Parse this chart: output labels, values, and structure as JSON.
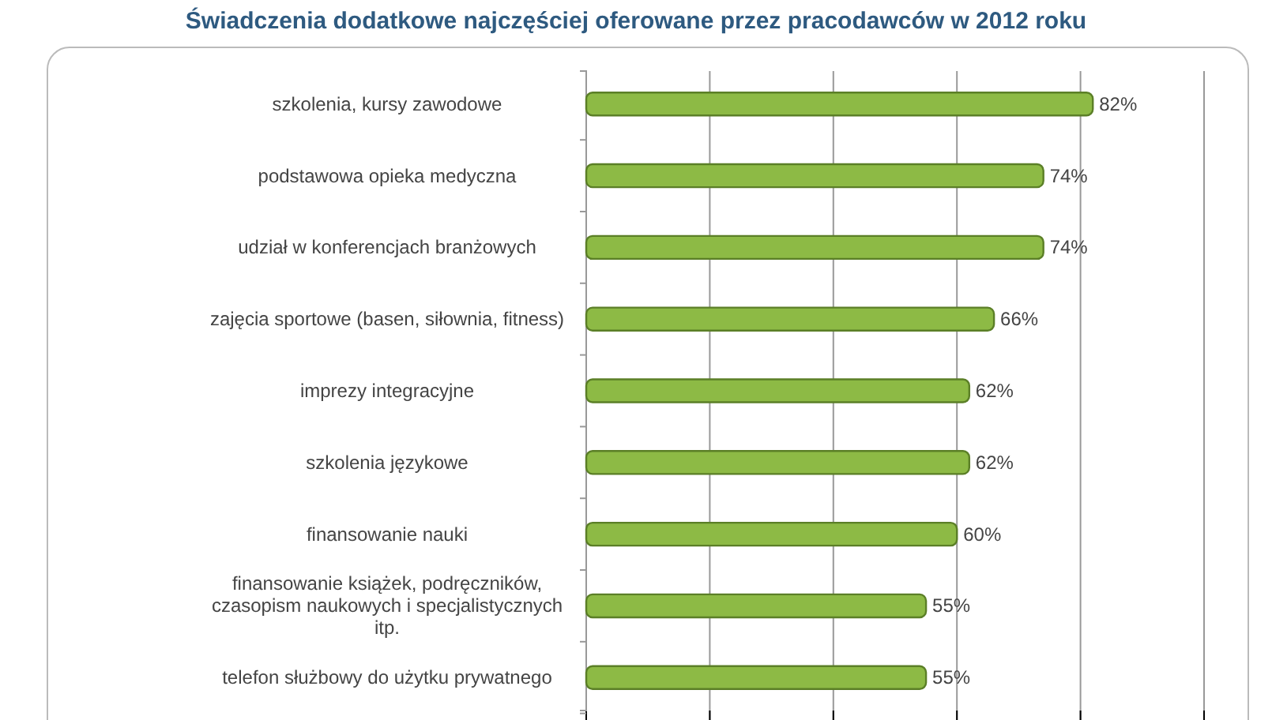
{
  "chart_data": {
    "type": "bar",
    "orientation": "horizontal",
    "title": "Świadczenia dodatkowe najczęściej oferowane przez pracodawców w 2012 roku",
    "categories": [
      "szkolenia, kursy zawodowe",
      "podstawowa opieka medyczna",
      "udział w konferencjach branżowych",
      "zajęcia sportowe (basen, siłownia, fitness)",
      "imprezy integracyjne",
      "szkolenia językowe",
      "finansowanie nauki",
      "finansowanie książek, podręczników, czasopism naukowych i specjalistycznych itp.",
      "telefon służbowy do użytku prywatnego"
    ],
    "values": [
      82,
      74,
      74,
      66,
      62,
      62,
      60,
      55,
      55
    ],
    "value_labels": [
      "82%",
      "74%",
      "74%",
      "66%",
      "62%",
      "62%",
      "60%",
      "55%",
      "55%"
    ],
    "color": "#8dba45",
    "xlim": [
      0,
      100
    ],
    "xticks": [
      {
        "value": 0,
        "label": null
      },
      {
        "value": 20,
        "label": null
      },
      {
        "value": 40,
        "label": null
      },
      {
        "value": 60,
        "label": null
      },
      {
        "value": 80,
        "label": null
      },
      {
        "value": 100,
        "label": null
      }
    ],
    "tick_labels": "y",
    "grid": "x"
  }
}
